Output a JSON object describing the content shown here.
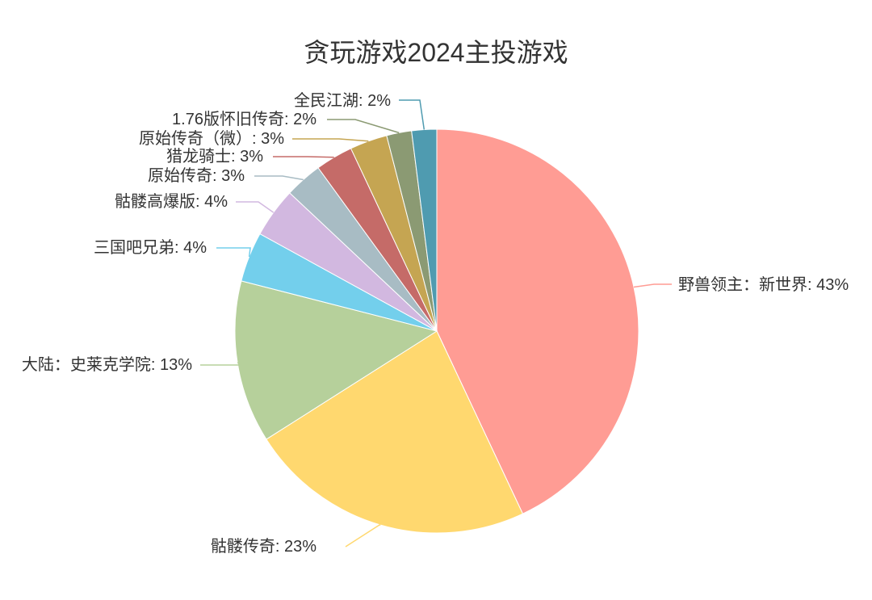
{
  "chart_data": {
    "type": "pie",
    "title": "贪玩游戏2024主投游戏",
    "label_format": "name: percent%",
    "slices": [
      {
        "name": "野兽领主：新世界",
        "value": 43,
        "color": "#ff9c94"
      },
      {
        "name": "骷髅传奇",
        "value": 23,
        "color": "#ffd86f"
      },
      {
        "name": "大陆：史莱克学院",
        "value": 13,
        "color": "#b6d09b"
      },
      {
        "name": "三国吧兄弟",
        "value": 4,
        "color": "#73cfec"
      },
      {
        "name": "骷髅高爆版",
        "value": 4,
        "color": "#d2b8e0"
      },
      {
        "name": "原始传奇",
        "value": 3,
        "color": "#a8bcc4"
      },
      {
        "name": "猎龙骑士",
        "value": 3,
        "color": "#c56b68"
      },
      {
        "name": "原始传奇（微）",
        "value": 3,
        "color": "#c5a552"
      },
      {
        "name": "1.76版怀旧传奇",
        "value": 2,
        "color": "#8b9a73"
      },
      {
        "name": "全民江湖",
        "value": 2,
        "color": "#4f9bb0"
      }
    ]
  }
}
